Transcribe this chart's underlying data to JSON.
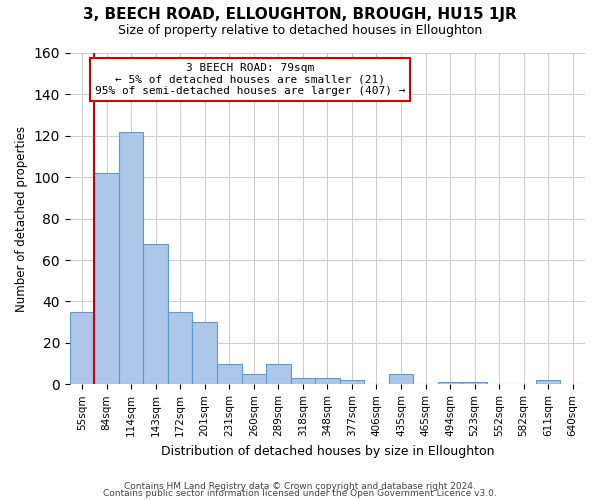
{
  "title": "3, BEECH ROAD, ELLOUGHTON, BROUGH, HU15 1JR",
  "subtitle": "Size of property relative to detached houses in Elloughton",
  "xlabel": "Distribution of detached houses by size in Elloughton",
  "ylabel": "Number of detached properties",
  "categories": [
    "55sqm",
    "84sqm",
    "114sqm",
    "143sqm",
    "172sqm",
    "201sqm",
    "231sqm",
    "260sqm",
    "289sqm",
    "318sqm",
    "348sqm",
    "377sqm",
    "406sqm",
    "435sqm",
    "465sqm",
    "494sqm",
    "523sqm",
    "552sqm",
    "582sqm",
    "611sqm",
    "640sqm"
  ],
  "values": [
    35,
    102,
    122,
    68,
    35,
    30,
    10,
    5,
    10,
    3,
    3,
    2,
    0,
    5,
    0,
    1,
    1,
    0,
    0,
    2,
    0
  ],
  "bar_color": "#aec6e8",
  "bar_edge_color": "#5a9fd4",
  "vline_color": "#cc0000",
  "annotation_line1": "3 BEECH ROAD: 79sqm",
  "annotation_line2": "← 5% of detached houses are smaller (21)",
  "annotation_line3": "95% of semi-detached houses are larger (407) →",
  "annotation_box_color": "#ffffff",
  "annotation_box_edge": "#cc0000",
  "footer1": "Contains HM Land Registry data © Crown copyright and database right 2024.",
  "footer2": "Contains public sector information licensed under the Open Government Licence v3.0.",
  "ylim": [
    0,
    160
  ],
  "background_color": "#ffffff",
  "grid_color": "#cccccc"
}
